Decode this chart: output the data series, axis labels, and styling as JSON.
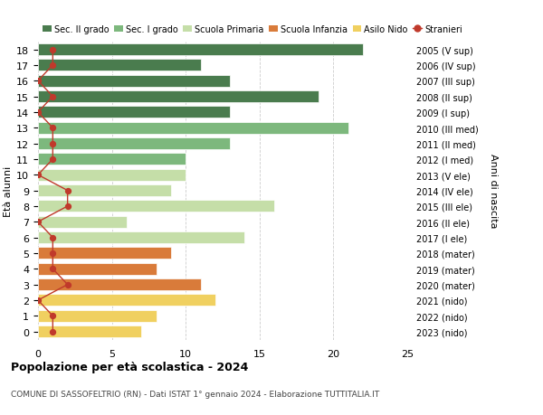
{
  "ages": [
    18,
    17,
    16,
    15,
    14,
    13,
    12,
    11,
    10,
    9,
    8,
    7,
    6,
    5,
    4,
    3,
    2,
    1,
    0
  ],
  "years": [
    "2005 (V sup)",
    "2006 (IV sup)",
    "2007 (III sup)",
    "2008 (II sup)",
    "2009 (I sup)",
    "2010 (III med)",
    "2011 (II med)",
    "2012 (I med)",
    "2013 (V ele)",
    "2014 (IV ele)",
    "2015 (III ele)",
    "2016 (II ele)",
    "2017 (I ele)",
    "2018 (mater)",
    "2019 (mater)",
    "2020 (mater)",
    "2021 (nido)",
    "2022 (nido)",
    "2023 (nido)"
  ],
  "values": [
    22,
    11,
    13,
    19,
    13,
    21,
    13,
    10,
    10,
    9,
    16,
    6,
    14,
    9,
    8,
    11,
    12,
    8,
    7
  ],
  "foreigners": [
    1,
    1,
    0,
    1,
    0,
    1,
    1,
    1,
    0,
    2,
    2,
    0,
    1,
    1,
    1,
    2,
    0,
    1,
    1
  ],
  "bar_colors": [
    "#4a7c4e",
    "#4a7c4e",
    "#4a7c4e",
    "#4a7c4e",
    "#4a7c4e",
    "#7db87d",
    "#7db87d",
    "#7db87d",
    "#c5dea8",
    "#c5dea8",
    "#c5dea8",
    "#c5dea8",
    "#c5dea8",
    "#d97b3a",
    "#d97b3a",
    "#d97b3a",
    "#f0d060",
    "#f0d060",
    "#f0d060"
  ],
  "legend_labels": [
    "Sec. II grado",
    "Sec. I grado",
    "Scuola Primaria",
    "Scuola Infanzia",
    "Asilo Nido",
    "Stranieri"
  ],
  "legend_colors": [
    "#4a7c4e",
    "#7db87d",
    "#c5dea8",
    "#d97b3a",
    "#f0d060",
    "#c0392b"
  ],
  "stranieri_color": "#c0392b",
  "title": "Popolazione per età scolastica - 2024",
  "subtitle": "COMUNE DI SASSOFELTRIO (RN) - Dati ISTAT 1° gennaio 2024 - Elaborazione TUTTITALIA.IT",
  "ylabel_left": "Età alunni",
  "ylabel_right": "Anni di nascita",
  "xlim": [
    0,
    25
  ],
  "xticks": [
    0,
    5,
    10,
    15,
    20,
    25
  ],
  "bg_color": "#ffffff",
  "grid_color": "#cccccc"
}
